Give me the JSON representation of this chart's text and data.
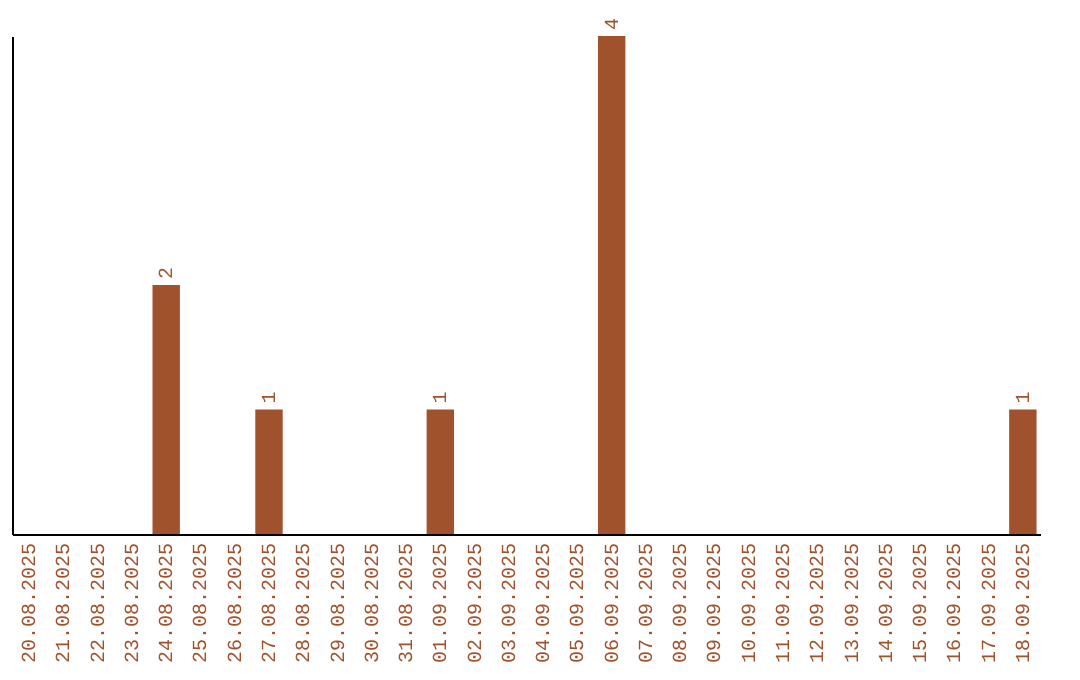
{
  "chart_data": {
    "type": "bar",
    "categories": [
      "20.08.2025",
      "21.08.2025",
      "22.08.2025",
      "23.08.2025",
      "24.08.2025",
      "25.08.2025",
      "26.08.2025",
      "27.08.2025",
      "28.08.2025",
      "29.08.2025",
      "30.08.2025",
      "31.08.2025",
      "01.09.2025",
      "02.09.2025",
      "03.09.2025",
      "04.09.2025",
      "05.09.2025",
      "06.09.2025",
      "07.09.2025",
      "08.09.2025",
      "09.09.2025",
      "10.09.2025",
      "11.09.2025",
      "12.09.2025",
      "13.09.2025",
      "14.09.2025",
      "15.09.2025",
      "16.09.2025",
      "17.09.2025",
      "18.09.2025"
    ],
    "values": [
      0,
      0,
      0,
      0,
      2,
      0,
      0,
      1,
      0,
      0,
      0,
      0,
      1,
      0,
      0,
      0,
      0,
      4,
      0,
      0,
      0,
      0,
      0,
      0,
      0,
      0,
      0,
      0,
      0,
      1
    ],
    "value_labels": [
      null,
      null,
      null,
      null,
      "2",
      null,
      null,
      "1",
      null,
      null,
      null,
      null,
      "1",
      null,
      null,
      null,
      null,
      "4",
      null,
      null,
      null,
      null,
      null,
      null,
      null,
      null,
      null,
      null,
      null,
      "1"
    ],
    "color": "#a0522d",
    "tick_labels": "x",
    "grid": false
  }
}
